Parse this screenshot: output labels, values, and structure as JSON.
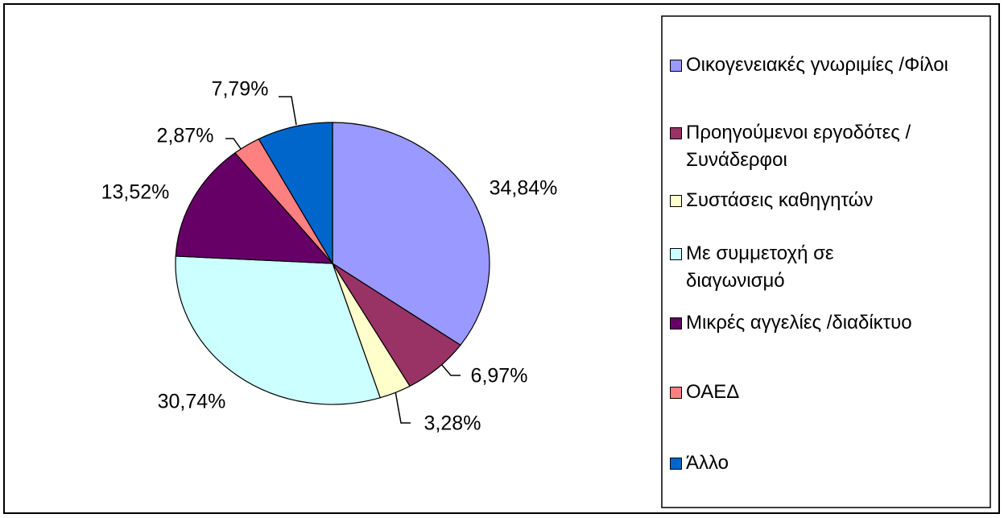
{
  "chart_data": {
    "type": "pie",
    "categories": [
      "Οικογενειακές γνωριμίες /Φίλοι",
      "Προηγούμενοι εργοδότες /Συνάδερφοι",
      "Συστάσεις καθηγητών",
      "Με συμμετοχή σε διαγωνισμό",
      "Μικρές αγγελίες /διαδίκτυο",
      "ΟΑΕΔ",
      "Άλλο"
    ],
    "values": [
      34.84,
      6.97,
      3.28,
      30.74,
      13.52,
      2.87,
      7.79
    ],
    "value_labels": [
      "34,84%",
      "6,97%",
      "3,28%",
      "30,74%",
      "13,52%",
      "2,87%",
      "7,79%"
    ],
    "colors": [
      "#9999ff",
      "#993366",
      "#ffffcc",
      "#ccffff",
      "#660066",
      "#ff8080",
      "#0066cc"
    ],
    "legend": "right"
  }
}
